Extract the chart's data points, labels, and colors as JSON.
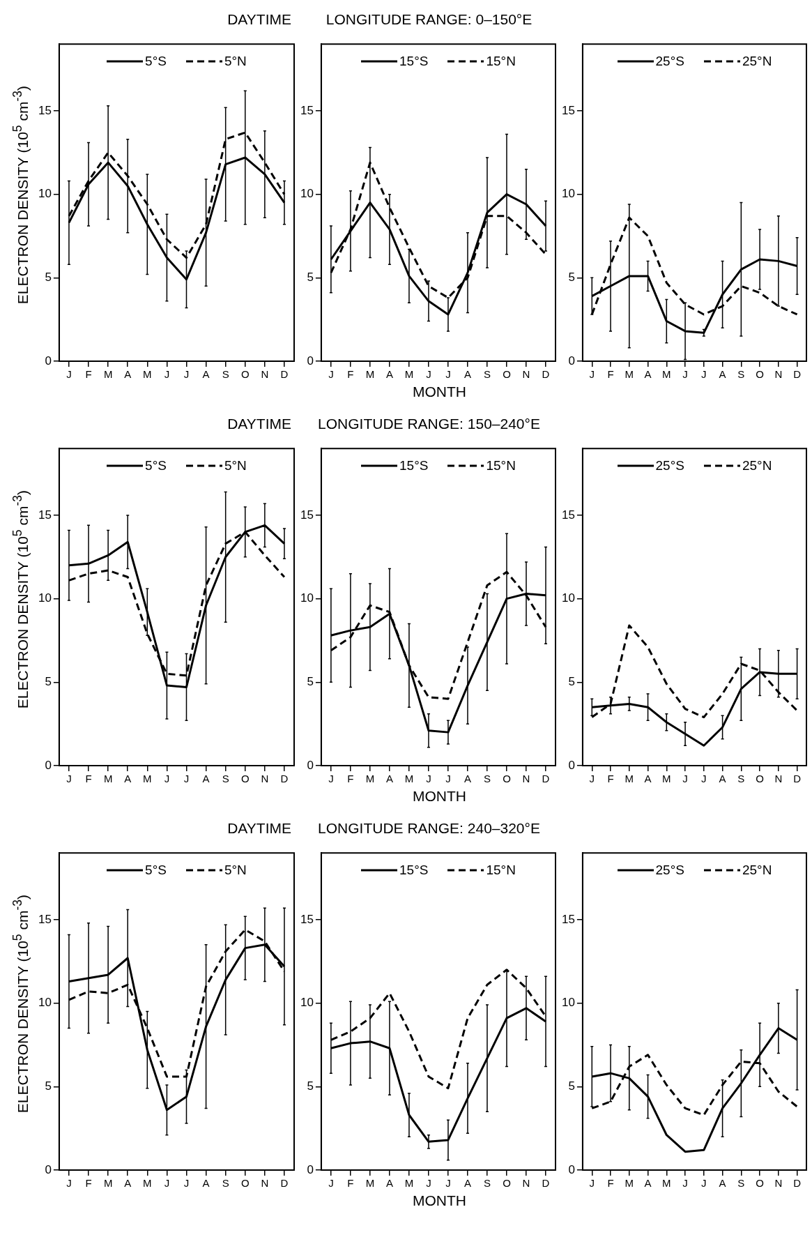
{
  "chart_data": [
    {
      "type": "line",
      "title": "DAYTIME",
      "ylabel": "ELECTRON DENSITY (10$^{5}$ cm$^{-3}$)",
      "categories": [
        "J",
        "F",
        "M",
        "A",
        "M",
        "J",
        "J",
        "A",
        "S",
        "O",
        "N",
        "D"
      ],
      "ylim": [
        0,
        19
      ],
      "yticks": [
        0,
        5,
        10,
        15
      ],
      "legend": "top",
      "marker": "none",
      "series": [
        {
          "name": "5°S",
          "color": "#000000",
          "line_style": "solid",
          "values": [
            8.3,
            10.6,
            11.9,
            10.5,
            8.2,
            6.2,
            4.9,
            7.7,
            11.8,
            12.2,
            11.2,
            9.5
          ],
          "errors": [
            2.5,
            2.5,
            3.4,
            2.8,
            3.0,
            2.6,
            1.7,
            3.2,
            3.4,
            4.0,
            2.6,
            1.3
          ]
        },
        {
          "name": "5°N",
          "color": "#000000",
          "line_style": "dashed",
          "values": [
            8.7,
            10.8,
            12.5,
            11.1,
            9.4,
            7.3,
            6.2,
            8.2,
            13.3,
            13.7,
            11.9,
            10.0
          ]
        }
      ]
    },
    {
      "type": "line",
      "title": "LONGITUDE RANGE: 0–150°E",
      "xlabel": "MONTH",
      "categories": [
        "J",
        "F",
        "M",
        "A",
        "M",
        "J",
        "J",
        "A",
        "S",
        "O",
        "N",
        "D"
      ],
      "ylim": [
        0,
        19
      ],
      "yticks": [
        0,
        5,
        10,
        15
      ],
      "legend": "top",
      "marker": "none",
      "series": [
        {
          "name": "15°S",
          "color": "#000000",
          "line_style": "solid",
          "values": [
            6.1,
            7.8,
            9.5,
            7.9,
            5.1,
            3.6,
            2.8,
            5.3,
            8.9,
            10.0,
            9.4,
            8.1
          ],
          "errors": [
            2.0,
            2.4,
            3.3,
            2.1,
            1.6,
            1.2,
            1.0,
            2.4,
            3.3,
            3.6,
            2.1,
            1.5
          ]
        },
        {
          "name": "15°N",
          "color": "#000000",
          "line_style": "dashed",
          "values": [
            5.3,
            7.9,
            11.9,
            9.2,
            6.8,
            4.5,
            3.8,
            5.0,
            8.7,
            8.7,
            7.7,
            6.4
          ]
        }
      ]
    },
    {
      "type": "line",
      "categories": [
        "J",
        "F",
        "M",
        "A",
        "M",
        "J",
        "J",
        "A",
        "S",
        "O",
        "N",
        "D"
      ],
      "ylim": [
        0,
        19
      ],
      "yticks": [
        0,
        5,
        10,
        15
      ],
      "legend": "top",
      "marker": "none",
      "series": [
        {
          "name": "25°S",
          "color": "#000000",
          "line_style": "solid",
          "values": [
            3.9,
            4.5,
            5.1,
            5.1,
            2.4,
            1.8,
            1.7,
            4.0,
            5.5,
            6.1,
            6.0,
            5.7
          ],
          "errors": [
            1.1,
            2.7,
            4.3,
            0.9,
            1.3,
            1.7,
            0.2,
            2.0,
            4.0,
            1.8,
            2.7,
            1.7
          ]
        },
        {
          "name": "25°N",
          "color": "#000000",
          "line_style": "dashed",
          "values": [
            2.8,
            5.8,
            8.6,
            7.5,
            4.7,
            3.4,
            2.8,
            3.3,
            4.5,
            4.1,
            3.3,
            2.8
          ]
        }
      ]
    },
    {
      "type": "line",
      "title": "DAYTIME",
      "ylabel": "ELECTRON DENSITY (10$^{5}$ cm$^{-3}$)",
      "categories": [
        "J",
        "F",
        "M",
        "A",
        "M",
        "J",
        "J",
        "A",
        "S",
        "O",
        "N",
        "D"
      ],
      "ylim": [
        0,
        19
      ],
      "yticks": [
        0,
        5,
        10,
        15
      ],
      "legend": "top",
      "marker": "none",
      "series": [
        {
          "name": "5°S",
          "color": "#000000",
          "line_style": "solid",
          "values": [
            12.0,
            12.1,
            12.6,
            13.4,
            9.2,
            4.8,
            4.7,
            9.6,
            12.5,
            14.0,
            14.4,
            13.3
          ],
          "errors": [
            2.1,
            2.3,
            1.5,
            1.6,
            1.4,
            2.0,
            2.0,
            4.7,
            3.9,
            1.5,
            1.3,
            0.9
          ]
        },
        {
          "name": "5°N",
          "color": "#000000",
          "line_style": "dashed",
          "values": [
            11.1,
            11.5,
            11.7,
            11.3,
            7.9,
            5.5,
            5.4,
            10.8,
            13.3,
            14.0,
            12.6,
            11.3
          ]
        }
      ]
    },
    {
      "type": "line",
      "title": "LONGITUDE RANGE: 150–240°E",
      "xlabel": "MONTH",
      "categories": [
        "J",
        "F",
        "M",
        "A",
        "M",
        "J",
        "J",
        "A",
        "S",
        "O",
        "N",
        "D"
      ],
      "ylim": [
        0,
        19
      ],
      "yticks": [
        0,
        5,
        10,
        15
      ],
      "legend": "top",
      "marker": "none",
      "series": [
        {
          "name": "15°S",
          "color": "#000000",
          "line_style": "solid",
          "values": [
            7.8,
            8.1,
            8.3,
            9.1,
            6.0,
            2.1,
            2.0,
            4.8,
            7.4,
            10.0,
            10.3,
            10.2
          ],
          "errors": [
            2.8,
            3.4,
            2.6,
            2.7,
            2.5,
            1.0,
            0.7,
            2.3,
            2.9,
            3.9,
            1.9,
            2.9
          ]
        },
        {
          "name": "15°N",
          "color": "#000000",
          "line_style": "dashed",
          "values": [
            6.9,
            7.7,
            9.6,
            9.2,
            6.0,
            4.1,
            4.0,
            7.4,
            10.8,
            11.6,
            10.2,
            8.3
          ]
        }
      ]
    },
    {
      "type": "line",
      "categories": [
        "J",
        "F",
        "M",
        "A",
        "M",
        "J",
        "J",
        "A",
        "S",
        "O",
        "N",
        "D"
      ],
      "ylim": [
        0,
        19
      ],
      "yticks": [
        0,
        5,
        10,
        15
      ],
      "legend": "top",
      "marker": "none",
      "series": [
        {
          "name": "25°S",
          "color": "#000000",
          "line_style": "solid",
          "values": [
            3.5,
            3.6,
            3.7,
            3.5,
            2.6,
            1.9,
            1.2,
            2.3,
            4.6,
            5.6,
            5.5,
            5.5
          ],
          "errors": [
            0.5,
            0.5,
            0.4,
            0.8,
            0.5,
            0.7,
            null,
            0.7,
            1.9,
            1.4,
            1.4,
            1.5
          ]
        },
        {
          "name": "25°N",
          "color": "#000000",
          "line_style": "dashed",
          "values": [
            2.9,
            3.7,
            8.4,
            7.1,
            4.9,
            3.4,
            2.9,
            4.3,
            6.1,
            5.7,
            4.4,
            3.3
          ]
        }
      ]
    },
    {
      "type": "line",
      "title": "DAYTIME",
      "ylabel": "ELECTRON DENSITY (10$^{5}$ cm$^{-3}$)",
      "categories": [
        "J",
        "F",
        "M",
        "A",
        "M",
        "J",
        "J",
        "A",
        "S",
        "O",
        "N",
        "D"
      ],
      "ylim": [
        0,
        19
      ],
      "yticks": [
        0,
        5,
        10,
        15
      ],
      "legend": "top",
      "marker": "none",
      "series": [
        {
          "name": "5°S",
          "color": "#000000",
          "line_style": "solid",
          "values": [
            11.3,
            11.5,
            11.7,
            12.7,
            7.2,
            3.6,
            4.4,
            8.6,
            11.4,
            13.3,
            13.5,
            12.2
          ],
          "errors": [
            2.8,
            3.3,
            2.9,
            2.9,
            2.3,
            1.5,
            1.6,
            4.9,
            3.3,
            1.9,
            2.2,
            3.5
          ]
        },
        {
          "name": "5°N",
          "color": "#000000",
          "line_style": "dashed",
          "values": [
            10.2,
            10.7,
            10.6,
            11.1,
            8.5,
            5.6,
            5.6,
            11.0,
            13.1,
            14.4,
            13.7,
            11.9
          ]
        }
      ]
    },
    {
      "type": "line",
      "title": "LONGITUDE RANGE: 240–320°E",
      "xlabel": "MONTH",
      "categories": [
        "J",
        "F",
        "M",
        "A",
        "M",
        "J",
        "J",
        "A",
        "S",
        "O",
        "N",
        "D"
      ],
      "ylim": [
        0,
        19
      ],
      "yticks": [
        0,
        5,
        10,
        15
      ],
      "legend": "top",
      "marker": "none",
      "series": [
        {
          "name": "15°S",
          "color": "#000000",
          "line_style": "solid",
          "values": [
            7.3,
            7.6,
            7.7,
            7.3,
            3.3,
            1.7,
            1.8,
            4.3,
            6.7,
            9.1,
            9.7,
            8.9
          ],
          "errors": [
            1.5,
            2.5,
            2.2,
            2.8,
            1.3,
            0.4,
            1.2,
            2.1,
            3.2,
            2.9,
            1.9,
            2.7
          ]
        },
        {
          "name": "15°N",
          "color": "#000000",
          "line_style": "dashed",
          "values": [
            7.8,
            8.3,
            9.1,
            10.6,
            8.3,
            5.6,
            4.9,
            9.1,
            11.1,
            12.0,
            10.9,
            9.2
          ]
        }
      ]
    },
    {
      "type": "line",
      "categories": [
        "J",
        "F",
        "M",
        "A",
        "M",
        "J",
        "J",
        "A",
        "S",
        "O",
        "N",
        "D"
      ],
      "ylim": [
        0,
        19
      ],
      "yticks": [
        0,
        5,
        10,
        15
      ],
      "legend": "top",
      "marker": "none",
      "series": [
        {
          "name": "25°S",
          "color": "#000000",
          "line_style": "solid",
          "values": [
            5.6,
            5.8,
            5.5,
            4.4,
            2.1,
            1.1,
            1.2,
            3.7,
            5.2,
            6.9,
            8.5,
            7.8
          ],
          "errors": [
            1.8,
            1.7,
            1.9,
            1.3,
            null,
            null,
            null,
            1.7,
            2.0,
            1.9,
            1.5,
            3.0
          ]
        },
        {
          "name": "25°N",
          "color": "#000000",
          "line_style": "dashed",
          "values": [
            3.7,
            4.1,
            6.2,
            6.9,
            5.1,
            3.7,
            3.3,
            5.1,
            6.5,
            6.4,
            4.7,
            3.8
          ]
        }
      ]
    }
  ]
}
